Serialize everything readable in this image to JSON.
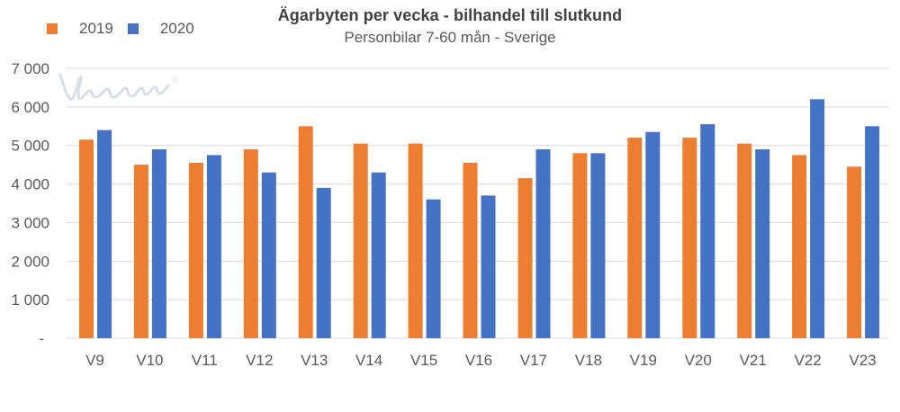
{
  "chart": {
    "title": "Ägarbyten per vecka - bilhandel till slutkund",
    "subtitle": "Personbilar 7-60 mån - Sverige"
  },
  "legend": {
    "items": [
      {
        "label": "2019",
        "color": "#ED7D31"
      },
      {
        "label": "2020",
        "color": "#4472C4"
      }
    ]
  },
  "watermark": {
    "brand": "Vroom",
    "registered": "®"
  },
  "chart_data": {
    "type": "bar",
    "title": "Ägarbyten per vecka - bilhandel till slutkund",
    "subtitle": "Personbilar 7-60 mån - Sverige",
    "categories": [
      "V9",
      "V10",
      "V11",
      "V12",
      "V13",
      "V14",
      "V15",
      "V16",
      "V17",
      "V18",
      "V19",
      "V20",
      "V21",
      "V22",
      "V23"
    ],
    "series": [
      {
        "name": "2019",
        "color": "#ED7D31",
        "values": [
          5150,
          4500,
          4550,
          4900,
          5500,
          5050,
          5050,
          4550,
          4150,
          4800,
          5200,
          5200,
          5050,
          4750,
          4450
        ]
      },
      {
        "name": "2020",
        "color": "#4472C4",
        "values": [
          5400,
          4900,
          4750,
          4300,
          3900,
          4300,
          3600,
          3700,
          4900,
          4800,
          5350,
          5550,
          4900,
          6200,
          5500
        ]
      }
    ],
    "xlabel": "",
    "ylabel": "",
    "ylim": [
      0,
      7000
    ],
    "y_ticks": [
      {
        "value": 7000,
        "label": "7 000"
      },
      {
        "value": 6000,
        "label": "6 000"
      },
      {
        "value": 5000,
        "label": "5 000"
      },
      {
        "value": 4000,
        "label": "4 000"
      },
      {
        "value": 3000,
        "label": "3 000"
      },
      {
        "value": 2000,
        "label": "2 000"
      },
      {
        "value": 1000,
        "label": "1 000"
      },
      {
        "value": 0,
        "label": "-"
      }
    ],
    "grid": true,
    "legend_position": "top-left"
  },
  "colors": {
    "series_2019": "#ED7D31",
    "series_2020": "#4472C4",
    "gridline": "#D9D9D9",
    "axis_text": "#595959",
    "title_text": "#404040",
    "watermark": "#D7DFE9",
    "background": "#FFFFFF"
  }
}
